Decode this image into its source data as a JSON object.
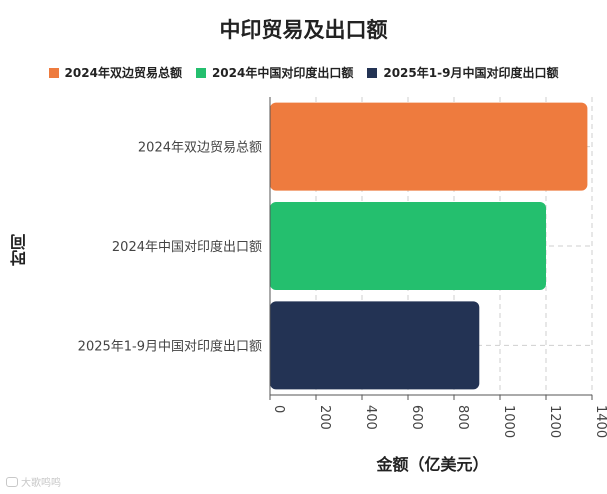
{
  "chart_data": {
    "type": "bar",
    "orientation": "horizontal",
    "title": "中印贸易及出口额",
    "xlabel": "金额（亿美元）",
    "ylabel": "时间",
    "categories": [
      "2024年双边贸易总额",
      "2024年中国对印度出口额",
      "2025年1-9月中国对印度出口额"
    ],
    "values": [
      1380,
      1200,
      910
    ],
    "colors": [
      "#ee7b3e",
      "#24bf6e",
      "#233354"
    ],
    "xlim": [
      0,
      1400
    ],
    "xticks": [
      "0",
      "200",
      "400",
      "600",
      "800",
      "1000",
      "1200",
      "1400"
    ],
    "grid": true,
    "legend": {
      "position": "top",
      "entries": [
        "2024年双边贸易总额",
        "2024年中国对印度出口额",
        "2025年1-9月中国对印度出口额"
      ]
    }
  },
  "watermark": {
    "text": "大歌鸣鸣",
    "icon": "quote-bubble-icon"
  }
}
